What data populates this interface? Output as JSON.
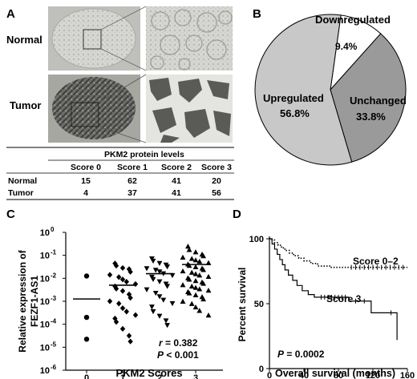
{
  "panels": {
    "A": "A",
    "B": "B",
    "C": "C",
    "D": "D"
  },
  "panel_a": {
    "row_labels": [
      "Normal",
      "Tumor"
    ],
    "table": {
      "caption": "PKM2 protein levels",
      "columns": [
        "Score 0",
        "Score 1",
        "Score 2",
        "Score 3"
      ],
      "rows": [
        {
          "label": "Normal",
          "values": [
            "15",
            "62",
            "41",
            "20"
          ]
        },
        {
          "label": "Tumor",
          "values": [
            "4",
            "37",
            "41",
            "56"
          ]
        }
      ]
    }
  },
  "chart_data": [
    {
      "type": "pie",
      "labels": [
        "Downregulated",
        "Upregulated",
        "Unchanged"
      ],
      "values": [
        9.4,
        56.8,
        33.8
      ],
      "value_labels": [
        "9.4%",
        "56.8%",
        "33.8%"
      ],
      "colors": [
        "#ffffff",
        "#c8c8c8",
        "#9a9a9a"
      ]
    },
    {
      "type": "scatter",
      "xlabel": "PKM2 Scores",
      "ylabel_lines": [
        "Relative expression of",
        "FEZF1-AS1"
      ],
      "log_y": true,
      "ylim": [
        1e-06,
        1
      ],
      "y_ticks": [
        {
          "base": "10",
          "exp": "0"
        },
        {
          "base": "10",
          "exp": "-1"
        },
        {
          "base": "10",
          "exp": "-2"
        },
        {
          "base": "10",
          "exp": "-3"
        },
        {
          "base": "10",
          "exp": "-4"
        },
        {
          "base": "10",
          "exp": "-5"
        },
        {
          "base": "10",
          "exp": "-6"
        }
      ],
      "x_ticks": [
        "0",
        "1",
        "2",
        "3"
      ],
      "annotation_r": {
        "symbol": "r",
        "text": " = 0.382"
      },
      "annotation_p": {
        "symbol": "P",
        "text": " < 0.001"
      },
      "groups": [
        {
          "x": 0,
          "marker": "circle",
          "median_log": -2.9,
          "log_values": [
            -1.9,
            -3.7,
            -4.65
          ]
        },
        {
          "x": 1,
          "marker": "diamond",
          "median_log": -2.3,
          "log_values": [
            -1.35,
            -1.45,
            -1.55,
            -1.6,
            -1.72,
            -1.85,
            -1.95,
            -2.05,
            -2.15,
            -2.25,
            -2.35,
            -2.45,
            -2.55,
            -2.7,
            -2.85,
            -3.0,
            -3.1,
            -3.3,
            -3.45,
            -3.6,
            -3.75,
            -3.9,
            -4.2,
            -4.5,
            -4.75
          ]
        },
        {
          "x": 2,
          "marker": "triangle-down",
          "median_log": -1.8,
          "log_values": [
            -1.15,
            -1.25,
            -1.35,
            -1.42,
            -1.5,
            -1.58,
            -1.65,
            -1.72,
            -1.8,
            -1.88,
            -1.95,
            -2.05,
            -2.15,
            -2.25,
            -2.35,
            -2.5,
            -2.65,
            -2.8,
            -2.95,
            -3.1,
            -3.25,
            -3.45,
            -3.65,
            -3.85,
            -4.05
          ]
        },
        {
          "x": 3,
          "marker": "triangle-up",
          "median_log": -1.4,
          "log_values": [
            -0.6,
            -0.75,
            -0.85,
            -0.95,
            -1.02,
            -1.08,
            -1.14,
            -1.2,
            -1.26,
            -1.32,
            -1.38,
            -1.44,
            -1.5,
            -1.56,
            -1.62,
            -1.68,
            -1.74,
            -1.8,
            -1.86,
            -1.92,
            -1.98,
            -2.04,
            -2.1,
            -2.16,
            -2.22,
            -2.28,
            -2.34,
            -2.4,
            -2.46,
            -2.52,
            -2.58,
            -2.64,
            -2.72,
            -2.8,
            -2.9,
            -3.0,
            -3.1,
            -3.25,
            -3.4,
            -3.6
          ]
        }
      ]
    },
    {
      "type": "line",
      "subtype": "kaplan-meier",
      "xlabel": "Overall survival (months)",
      "ylabel": "Percent survival",
      "xlim": [
        0,
        160
      ],
      "ylim": [
        0,
        100
      ],
      "x_ticks": [
        "0",
        "40",
        "80",
        "120",
        "160"
      ],
      "y_ticks": [
        "0",
        "50",
        "100"
      ],
      "annotation_p": {
        "symbol": "P",
        "text": " = 0.0002"
      },
      "series": [
        {
          "name": "Score 0–2",
          "style": "dotted",
          "steps": [
            [
              0,
              100
            ],
            [
              3,
              99
            ],
            [
              6,
              97
            ],
            [
              10,
              95
            ],
            [
              14,
              93
            ],
            [
              18,
              91
            ],
            [
              23,
              89
            ],
            [
              28,
              87
            ],
            [
              34,
              85
            ],
            [
              40,
              83
            ],
            [
              48,
              81
            ],
            [
              56,
              79
            ],
            [
              70,
              78
            ],
            [
              160,
              78
            ]
          ],
          "censor_x": [
            95,
            100,
            105,
            110,
            115,
            120,
            125,
            130,
            135,
            140,
            145,
            150,
            155
          ]
        },
        {
          "name": "Score 3",
          "style": "solid",
          "steps": [
            [
              0,
              100
            ],
            [
              3,
              96
            ],
            [
              6,
              92
            ],
            [
              9,
              88
            ],
            [
              12,
              84
            ],
            [
              15,
              80
            ],
            [
              18,
              76
            ],
            [
              22,
              72
            ],
            [
              27,
              68
            ],
            [
              32,
              64
            ],
            [
              38,
              60
            ],
            [
              45,
              57
            ],
            [
              52,
              55
            ],
            [
              92,
              55
            ],
            [
              92,
              52
            ],
            [
              118,
              52
            ],
            [
              118,
              43
            ],
            [
              148,
              43
            ],
            [
              148,
              22
            ]
          ],
          "censor_x": [
            60,
            64,
            68,
            72,
            76,
            80,
            84,
            88,
            100,
            110,
            141
          ]
        }
      ]
    }
  ]
}
